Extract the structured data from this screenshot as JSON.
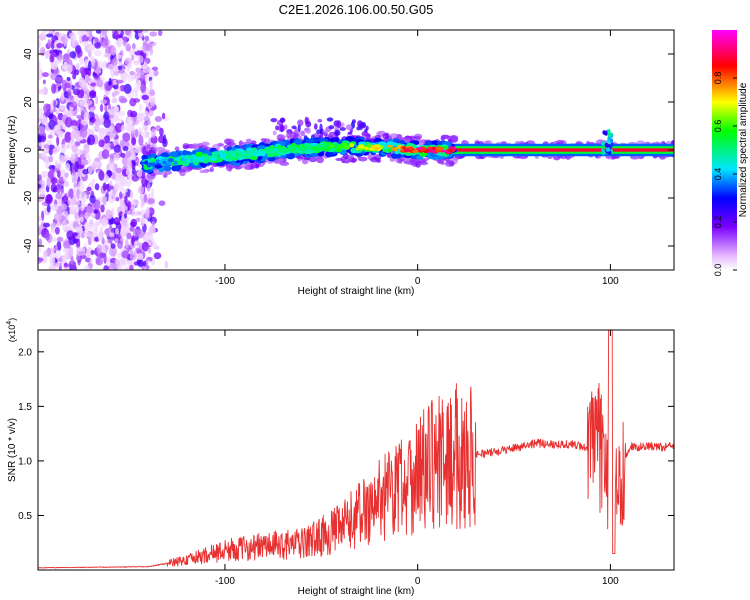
{
  "title": "C2E1.2026.106.00.50.G05",
  "chart_data": [
    {
      "type": "heatmap",
      "title": "C2E1.2026.106.00.50.G05",
      "xlabel": "Height of straight line (km)",
      "ylabel": "Frequency (Hz)",
      "xlim": [
        -197,
        133
      ],
      "ylim": [
        -50,
        50
      ],
      "x_ticks": [
        -100,
        0,
        100
      ],
      "x_tick_labels": [
        "-100",
        "0",
        "100"
      ],
      "y_ticks": [
        -40,
        -20,
        0,
        20,
        40
      ],
      "y_tick_labels": [
        "-40",
        "-20",
        "0",
        "20",
        "40"
      ],
      "colorbar": {
        "label": "Normalized spectral amplitude",
        "range": [
          0,
          1
        ],
        "ticks": [
          0.0,
          0.2,
          0.4,
          0.6,
          0.8
        ],
        "tick_labels": [
          "0.0",
          "0.2",
          "0.4",
          "0.6",
          "0.8"
        ]
      },
      "ridge": [
        {
          "x": -140,
          "f": -6.0,
          "amp": 0.35
        },
        {
          "x": -120,
          "f": -4.0,
          "amp": 0.45
        },
        {
          "x": -100,
          "f": -2.5,
          "amp": 0.5
        },
        {
          "x": -80,
          "f": -1.0,
          "amp": 0.5
        },
        {
          "x": -60,
          "f": 1.0,
          "amp": 0.55
        },
        {
          "x": -40,
          "f": 1.5,
          "amp": 0.6
        },
        {
          "x": -20,
          "f": 1.0,
          "amp": 0.75
        },
        {
          "x": 0,
          "f": 0.0,
          "amp": 0.9
        },
        {
          "x": 20,
          "f": 0.0,
          "amp": 0.95
        },
        {
          "x": 60,
          "f": 0.0,
          "amp": 0.98
        },
        {
          "x": 100,
          "f": 0.0,
          "amp": 0.95
        },
        {
          "x": 133,
          "f": 0.0,
          "amp": 0.95
        }
      ]
    },
    {
      "type": "line",
      "xlabel": "Height of straight line (km)",
      "ylabel": "SNR (10 * v/v)",
      "y_scale_label": "(x10",
      "y_scale_exponent": "4",
      "xlim": [
        -197,
        133
      ],
      "ylim": [
        0,
        22000
      ],
      "x_ticks": [
        -100,
        0,
        100
      ],
      "x_tick_labels": [
        "-100",
        "0",
        "100"
      ],
      "y_ticks": [
        5000,
        10000,
        15000,
        20000
      ],
      "y_tick_labels": [
        "0.5",
        "1.0",
        "1.5",
        "2.0"
      ],
      "color": "#e83030",
      "envelope": [
        {
          "x": -197,
          "snr": 200
        },
        {
          "x": -140,
          "snr": 300
        },
        {
          "x": -120,
          "snr": 900
        },
        {
          "x": -100,
          "snr": 1800
        },
        {
          "x": -80,
          "snr": 2200
        },
        {
          "x": -60,
          "snr": 2400
        },
        {
          "x": -40,
          "snr": 3800
        },
        {
          "x": -20,
          "snr": 6500
        },
        {
          "x": 0,
          "snr": 9000
        },
        {
          "x": 20,
          "snr": 10400
        },
        {
          "x": 40,
          "snr": 10800
        },
        {
          "x": 60,
          "snr": 11600
        },
        {
          "x": 80,
          "snr": 11500
        },
        {
          "x": 95,
          "snr": 11000
        },
        {
          "x": 101,
          "snr": 6000
        },
        {
          "x": 110,
          "snr": 11300
        },
        {
          "x": 133,
          "snr": 11300
        }
      ]
    }
  ]
}
